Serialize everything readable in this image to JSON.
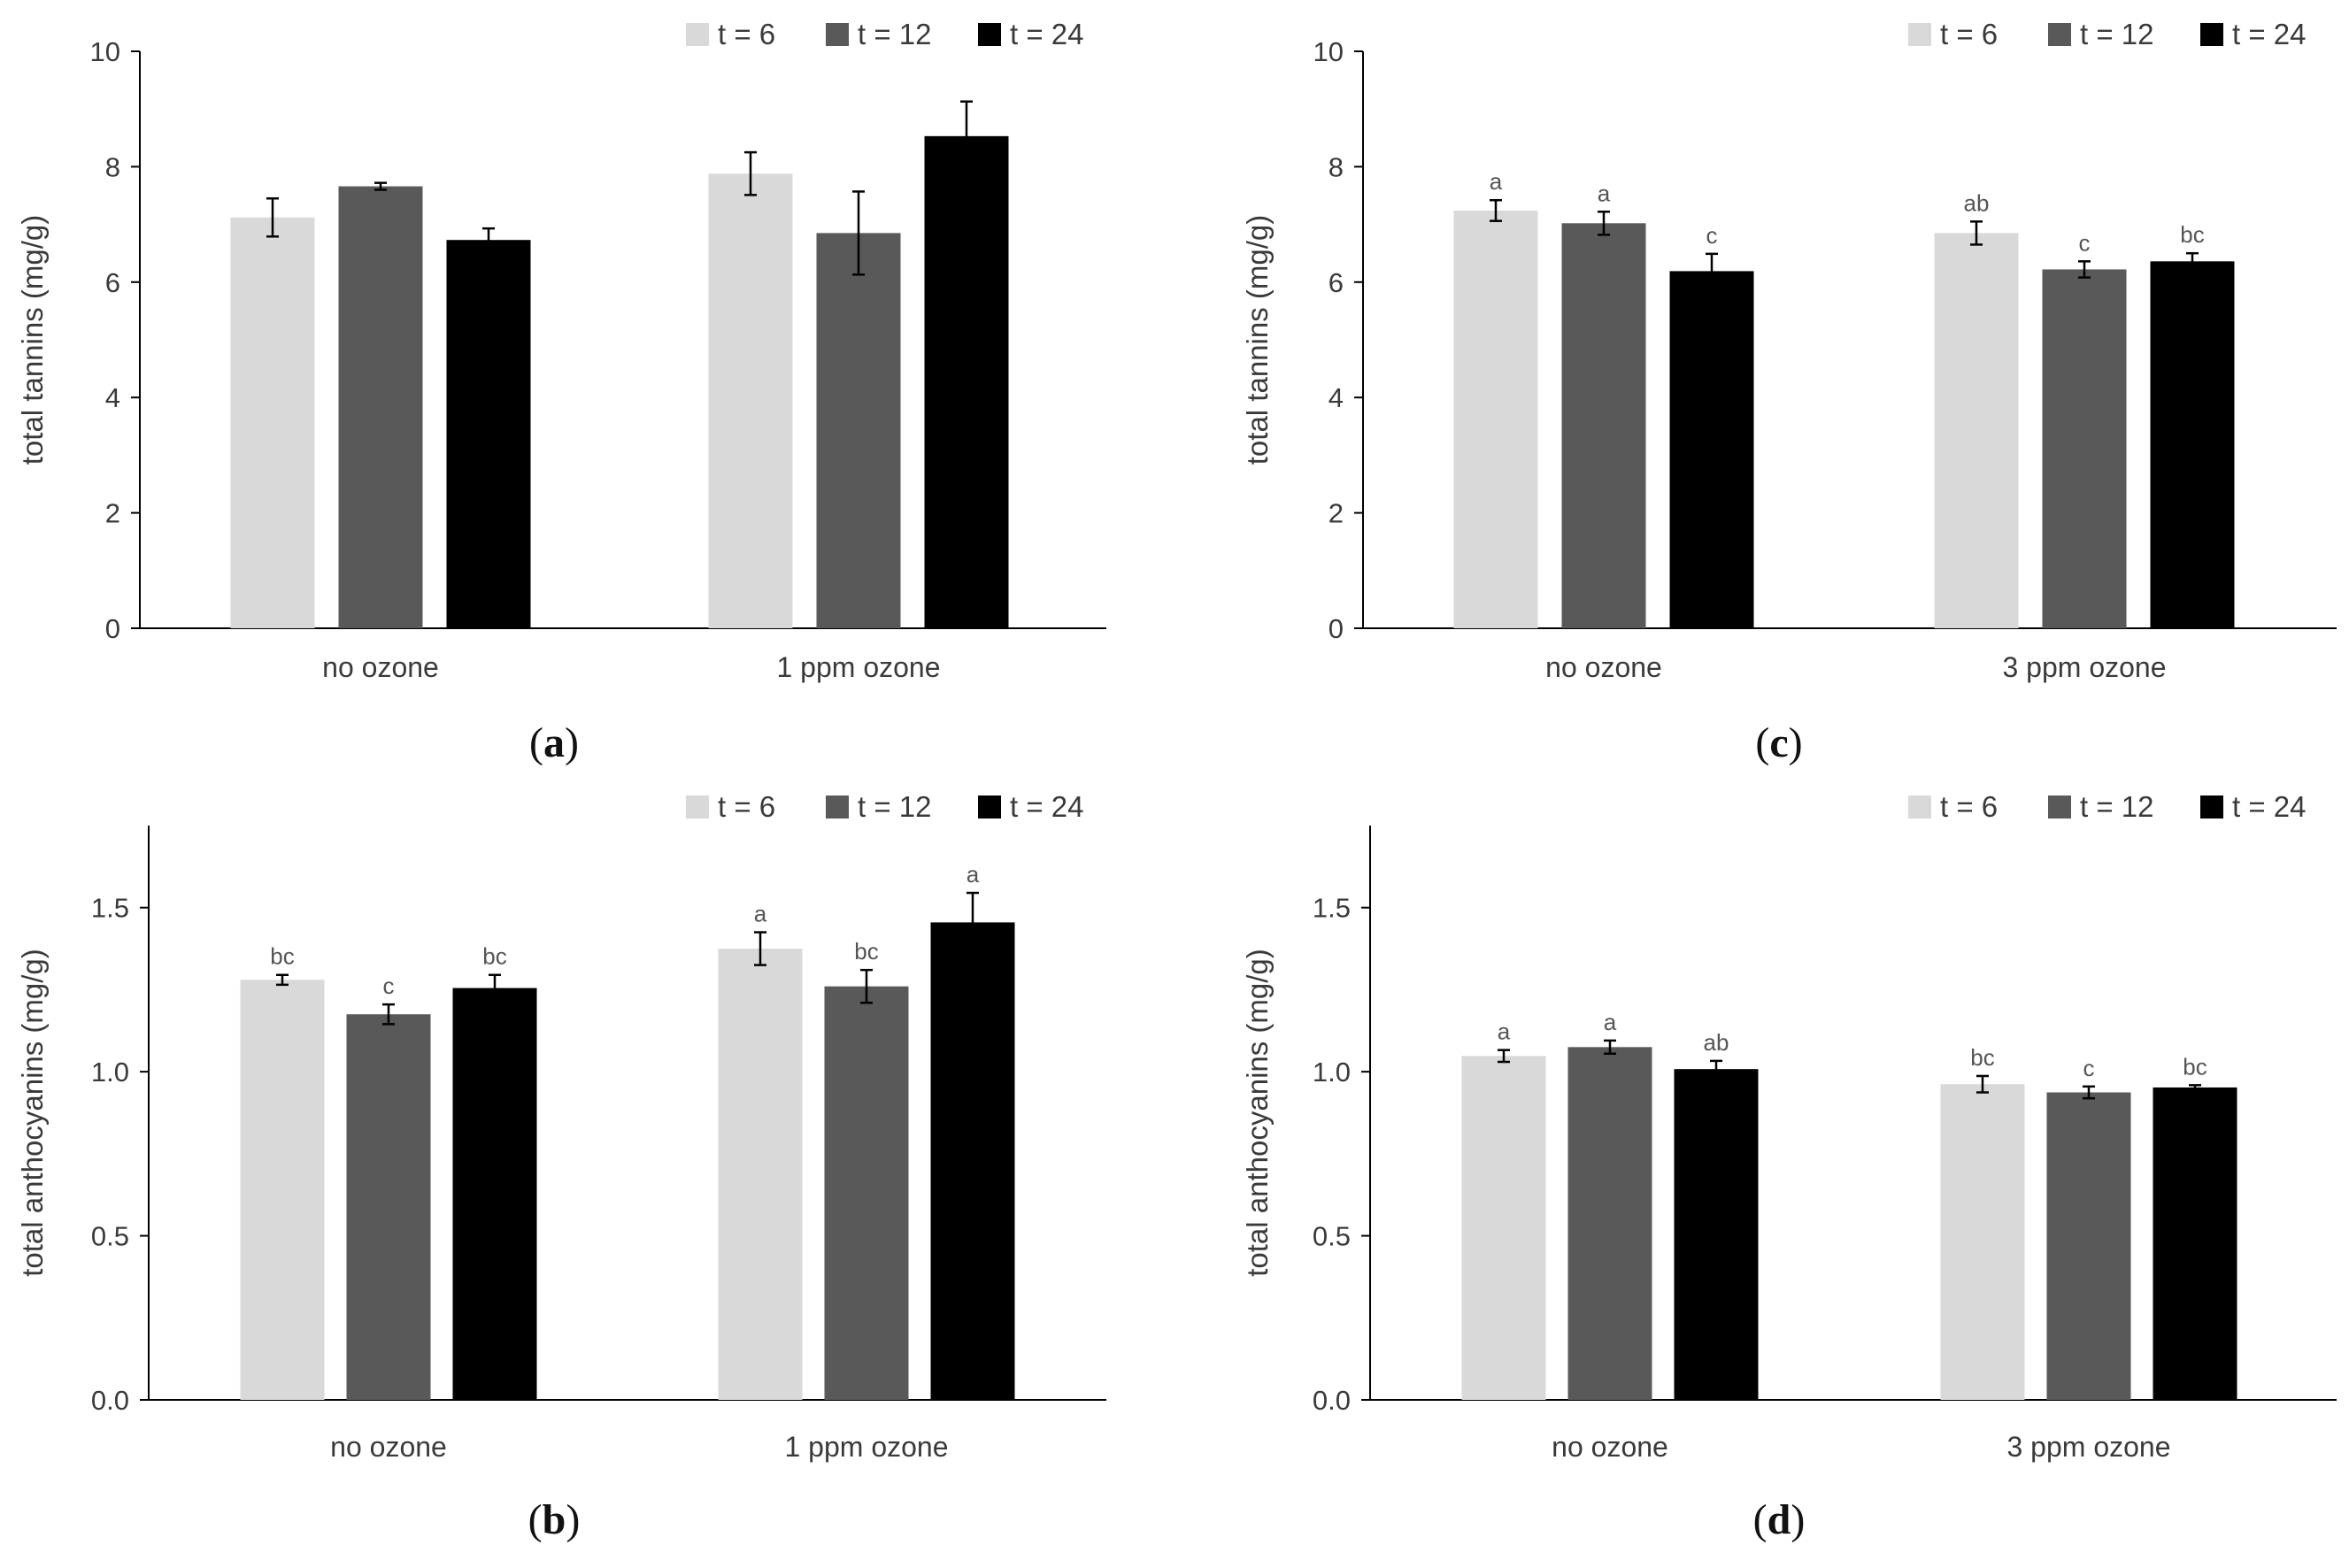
{
  "colors": {
    "t6": "#d9d9d9",
    "t12": "#595959",
    "t24": "#000000",
    "axis": "#000000",
    "text": "#3a3a3a"
  },
  "chart_data": [
    {
      "type": "bar",
      "panel": "a",
      "panel_label": "a",
      "categories": [
        "no ozone",
        "1 ppm ozone"
      ],
      "ylabel": "total tannins (mg/g)",
      "ylim": [
        0,
        10
      ],
      "yticks": [
        0,
        2,
        4,
        6,
        8,
        10
      ],
      "ytick_labels": [
        "0",
        "2",
        "4",
        "6",
        "8",
        "10"
      ],
      "legend_position": "top-right",
      "series": [
        {
          "name": "t = 6",
          "values": [
            7.12,
            7.88
          ],
          "errors": [
            0.33,
            0.37
          ],
          "labels": [
            "",
            ""
          ]
        },
        {
          "name": "t = 12",
          "values": [
            7.66,
            6.85
          ],
          "errors": [
            0.06,
            0.72
          ],
          "labels": [
            "",
            ""
          ]
        },
        {
          "name": "t = 24",
          "values": [
            6.73,
            8.53
          ],
          "errors": [
            0.2,
            0.6
          ],
          "labels": [
            "",
            ""
          ]
        }
      ]
    },
    {
      "type": "bar",
      "panel": "b",
      "panel_label": "b",
      "categories": [
        "no ozone",
        "1 ppm ozone"
      ],
      "ylabel": "total anthocyanins (mg/g)",
      "ylim": [
        0,
        1.75
      ],
      "yticks": [
        0,
        0.5,
        1,
        1.5
      ],
      "ytick_labels": [
        "0.0",
        "0.5",
        "1.0",
        "1.5"
      ],
      "legend_position": "top-right",
      "series": [
        {
          "name": "t = 6",
          "values": [
            1.28,
            1.375
          ],
          "errors": [
            0.015,
            0.05
          ],
          "labels": [
            "bc",
            "a"
          ]
        },
        {
          "name": "t = 12",
          "values": [
            1.175,
            1.26
          ],
          "errors": [
            0.03,
            0.05
          ],
          "labels": [
            "c",
            "bc"
          ]
        },
        {
          "name": "t = 24",
          "values": [
            1.255,
            1.455
          ],
          "errors": [
            0.04,
            0.09
          ],
          "labels": [
            "bc",
            "a"
          ]
        }
      ]
    },
    {
      "type": "bar",
      "panel": "c",
      "panel_label": "c",
      "categories": [
        "no ozone",
        "3 ppm ozone"
      ],
      "ylabel": "total tannins (mg/g)",
      "ylim": [
        0,
        10
      ],
      "yticks": [
        0,
        2,
        4,
        6,
        8,
        10
      ],
      "ytick_labels": [
        "0",
        "2",
        "4",
        "6",
        "8",
        "10"
      ],
      "legend_position": "top-right",
      "series": [
        {
          "name": "t = 6",
          "values": [
            7.24,
            6.85
          ],
          "errors": [
            0.18,
            0.2
          ],
          "labels": [
            "a",
            "ab"
          ]
        },
        {
          "name": "t = 12",
          "values": [
            7.02,
            6.22
          ],
          "errors": [
            0.2,
            0.14
          ],
          "labels": [
            "a",
            "c"
          ]
        },
        {
          "name": "t = 24",
          "values": [
            6.19,
            6.36
          ],
          "errors": [
            0.3,
            0.14
          ],
          "labels": [
            "c",
            "bc"
          ]
        }
      ]
    },
    {
      "type": "bar",
      "panel": "d",
      "panel_label": "d",
      "categories": [
        "no ozone",
        "3 ppm ozone"
      ],
      "ylabel": "total anthocyanins (mg/g)",
      "ylim": [
        0,
        1.75
      ],
      "yticks": [
        0,
        0.5,
        1,
        1.5
      ],
      "ytick_labels": [
        "0.0",
        "0.5",
        "1.0",
        "1.5"
      ],
      "legend_position": "top-right",
      "series": [
        {
          "name": "t = 6",
          "values": [
            1.048,
            0.962
          ],
          "errors": [
            0.018,
            0.025
          ],
          "labels": [
            "a",
            "bc"
          ]
        },
        {
          "name": "t = 12",
          "values": [
            1.075,
            0.937
          ],
          "errors": [
            0.02,
            0.018
          ],
          "labels": [
            "a",
            "c"
          ]
        },
        {
          "name": "t = 24",
          "values": [
            1.008,
            0.952
          ],
          "errors": [
            0.025,
            0.007
          ],
          "labels": [
            "ab",
            "bc"
          ]
        }
      ]
    }
  ]
}
